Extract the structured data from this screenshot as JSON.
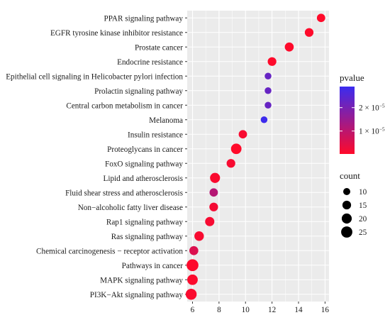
{
  "chart_data": {
    "type": "scatter",
    "subtype": "bubble / enrichment dot plot",
    "x_axis": {
      "ticks": [
        6,
        8,
        10,
        12,
        14,
        16
      ],
      "range": [
        5.6,
        16.3
      ]
    },
    "grid": true,
    "terms": [
      {
        "label": "PPAR signaling pathway",
        "x": 15.7,
        "count": 14,
        "pvalue": 2e-07
      },
      {
        "label": "EGFR tyrosine kinase inhibitor resistance",
        "x": 14.8,
        "count": 15,
        "pvalue": 3e-07
      },
      {
        "label": "Prostate cancer",
        "x": 13.3,
        "count": 16,
        "pvalue": 3e-07
      },
      {
        "label": "Endocrine resistance",
        "x": 12.0,
        "count": 15,
        "pvalue": 3e-07
      },
      {
        "label": "Epithelial cell signaling in Helicobacter pylori infection",
        "x": 11.7,
        "count": 9,
        "pvalue": 2.25e-05
      },
      {
        "label": "Prolactin signaling pathway",
        "x": 11.7,
        "count": 9,
        "pvalue": 2.25e-05
      },
      {
        "label": "Central carbon metabolism in cancer",
        "x": 11.7,
        "count": 9,
        "pvalue": 2.25e-05
      },
      {
        "label": "Melanoma",
        "x": 11.4,
        "count": 9,
        "pvalue": 2.85e-05
      },
      {
        "label": "Insulin resistance",
        "x": 9.8,
        "count": 14,
        "pvalue": 1.2e-06
      },
      {
        "label": "Proteoglycans in cancer",
        "x": 9.3,
        "count": 22,
        "pvalue": 2e-07
      },
      {
        "label": "FoxO signaling pathway",
        "x": 8.9,
        "count": 15,
        "pvalue": 1.2e-06
      },
      {
        "label": "Lipid and atherosclerosis",
        "x": 7.7,
        "count": 20,
        "pvalue": 9e-07
      },
      {
        "label": "Fluid shear stress and atherosclerosis",
        "x": 7.6,
        "count": 14,
        "pvalue": 1.1e-05
      },
      {
        "label": "Non−alcoholic fatty liver disease",
        "x": 7.6,
        "count": 15,
        "pvalue": 1.8e-06
      },
      {
        "label": "Rap1 signaling pathway",
        "x": 7.3,
        "count": 17,
        "pvalue": 1.3e-06
      },
      {
        "label": "Ras signaling pathway",
        "x": 6.5,
        "count": 18,
        "pvalue": 1.2e-06
      },
      {
        "label": "Chemical carcinogenesis − receptor activation",
        "x": 6.1,
        "count": 16,
        "pvalue": 5.5e-06
      },
      {
        "label": "Pathways in cancer",
        "x": 6.0,
        "count": 28,
        "pvalue": 5e-07
      },
      {
        "label": "MAPK signaling pathway",
        "x": 6.0,
        "count": 22,
        "pvalue": 7e-07
      },
      {
        "label": "PI3K−Akt signaling pathway",
        "x": 5.9,
        "count": 24,
        "pvalue": 9e-07
      }
    ],
    "color_legend": {
      "title": "pvalue",
      "low_color": "#ff0a2a",
      "high_color": "#3a2cf0",
      "range": [
        2e-07,
        2.9e-05
      ],
      "ticks": [
        {
          "value": 1e-05,
          "mantissa": "1 × 10",
          "exponent": "−5"
        },
        {
          "value": 2e-05,
          "mantissa": "2 × 10",
          "exponent": "−5"
        }
      ]
    },
    "size_legend": {
      "title": "count",
      "entries": [
        10,
        15,
        20,
        25
      ],
      "color": "#000000"
    },
    "colors": {
      "panel_background": "#ebebeb",
      "grid_line": "#ffffff"
    }
  }
}
